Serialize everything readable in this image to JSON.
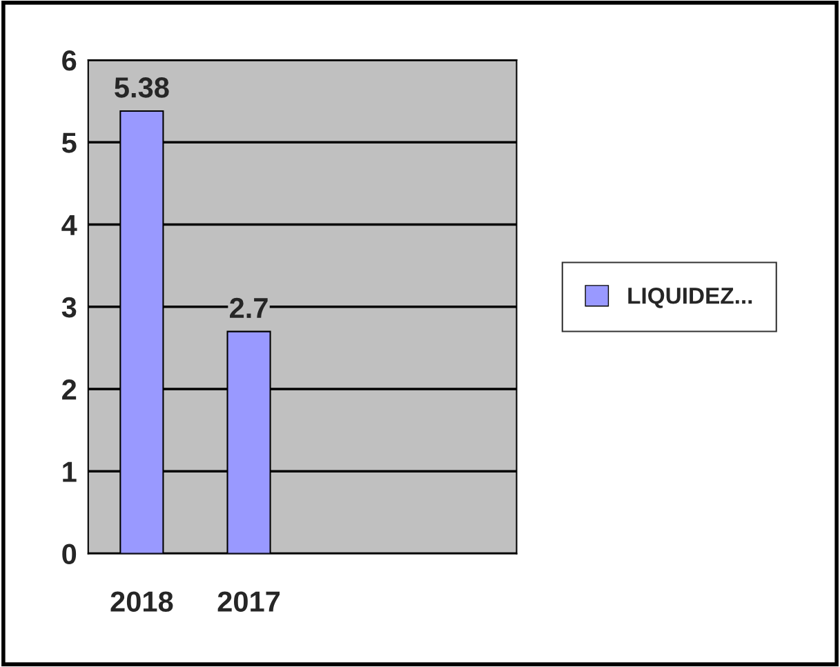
{
  "chart_data": {
    "type": "bar",
    "categories": [
      "2018",
      "2017",
      null,
      null
    ],
    "series": [
      {
        "name": "LIQUIDEZ...",
        "color": "#9999ff",
        "values": [
          5.38,
          2.7,
          null,
          null
        ]
      }
    ],
    "ylim": [
      0,
      6
    ],
    "yticks": [
      0,
      1,
      2,
      3,
      4,
      5,
      6
    ],
    "grid": "y",
    "legend": "right",
    "data_labels": true
  }
}
